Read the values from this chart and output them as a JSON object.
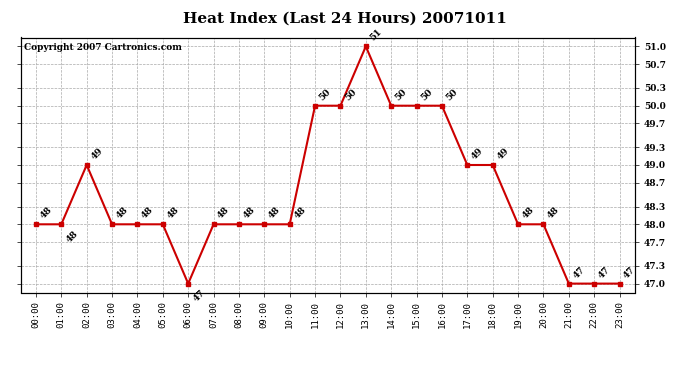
{
  "title": "Heat Index (Last 24 Hours) 20071011",
  "copyright": "Copyright 2007 Cartronics.com",
  "x_labels": [
    "00:00",
    "01:00",
    "02:00",
    "03:00",
    "04:00",
    "05:00",
    "06:00",
    "07:00",
    "08:00",
    "09:00",
    "10:00",
    "11:00",
    "12:00",
    "13:00",
    "14:00",
    "15:00",
    "16:00",
    "17:00",
    "18:00",
    "19:00",
    "20:00",
    "21:00",
    "22:00",
    "23:00"
  ],
  "y_values": [
    48,
    48,
    49,
    48,
    48,
    48,
    47,
    48,
    48,
    48,
    48,
    50,
    50,
    51,
    50,
    50,
    50,
    49,
    49,
    48,
    48,
    47,
    47,
    47
  ],
  "ylim_min": 46.85,
  "ylim_max": 51.15,
  "yticks": [
    47.0,
    47.3,
    47.7,
    48.0,
    48.3,
    48.7,
    49.0,
    49.3,
    49.7,
    50.0,
    50.3,
    50.7,
    51.0
  ],
  "line_color": "#cc0000",
  "marker_color": "#cc0000",
  "bg_color": "#ffffff",
  "grid_color": "#aaaaaa",
  "title_fontsize": 11,
  "tick_label_fontsize": 6.5,
  "point_label_fontsize": 6.5,
  "copyright_fontsize": 6.5,
  "label_below": [
    1,
    6
  ]
}
